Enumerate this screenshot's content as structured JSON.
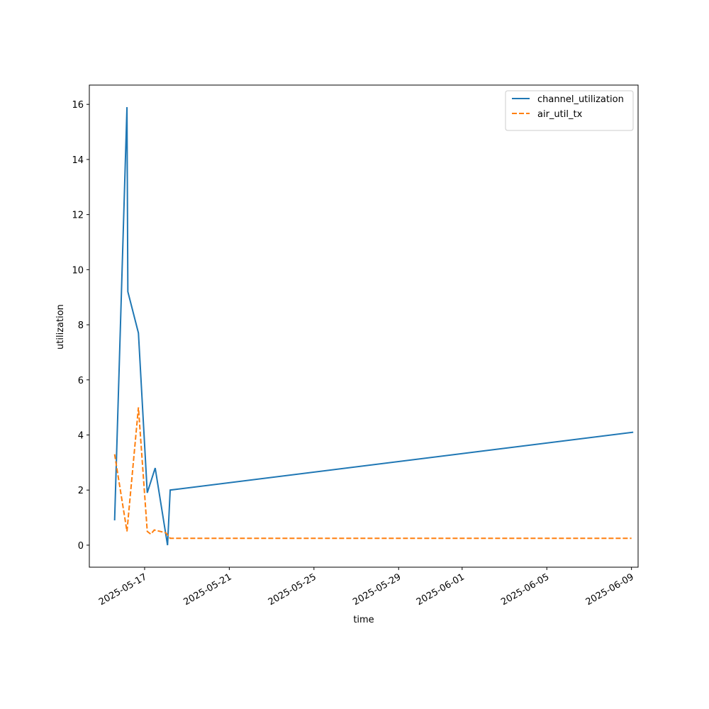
{
  "chart_data": {
    "type": "line",
    "x_label": "time",
    "y_label": "utilization",
    "series": [
      {
        "name": "channel_utilization",
        "color": "#1f77b4",
        "dash": "solid",
        "x": [
          "2025-05-15T14:00",
          "2025-05-16T04:00",
          "2025-05-16T05:00",
          "2025-05-16T17:00",
          "2025-05-17T03:00",
          "2025-05-17T12:00",
          "2025-05-18T02:00",
          "2025-05-18T05:00",
          "2025-06-09T02:00"
        ],
        "values": [
          0.9,
          15.9,
          9.2,
          7.7,
          1.9,
          2.8,
          0,
          2.0,
          4.1
        ]
      },
      {
        "name": "air_util_tx",
        "color": "#ff7f0e",
        "dash": "dashed",
        "x": [
          "2025-05-15T14:00",
          "2025-05-16T04:00",
          "2025-05-16T17:00",
          "2025-05-17T03:00",
          "2025-05-17T07:00",
          "2025-05-17T11:00",
          "2025-05-18T00:00",
          "2025-05-18T05:00",
          "2025-06-09T00:00"
        ],
        "values": [
          3.3,
          0.5,
          5.0,
          0.5,
          0.4,
          0.55,
          0.45,
          0.25,
          0.25
        ]
      }
    ],
    "xlim": [
      "2025-05-14T09:20",
      "2025-06-09T07:30"
    ],
    "xticks": [
      "2025-05-17",
      "2025-05-21",
      "2025-05-25",
      "2025-05-29",
      "2025-06-01",
      "2025-06-05",
      "2025-06-09"
    ],
    "ylim": [
      -0.8,
      16.7
    ],
    "yticks": [
      0,
      2,
      4,
      6,
      8,
      10,
      12,
      14,
      16
    ],
    "legend": "upper right",
    "grid": false
  }
}
